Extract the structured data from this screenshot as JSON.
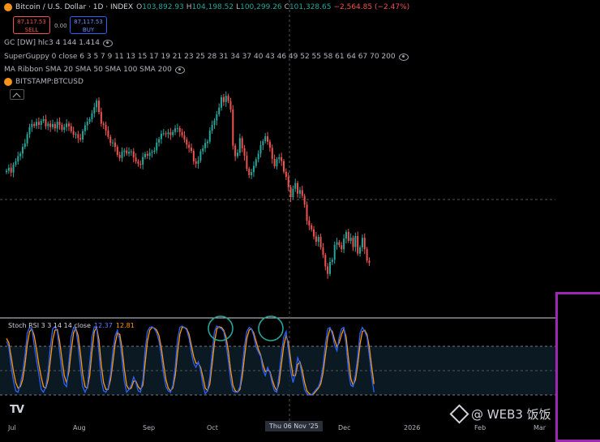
{
  "header": {
    "title": "Bitcoin / U.S. Dollar · 1D · INDEX",
    "ohlc": [
      {
        "label": "O",
        "value": "103,892.93",
        "tone": "up"
      },
      {
        "label": "H",
        "value": "104,198.52",
        "tone": "up"
      },
      {
        "label": "L",
        "value": "100,299.26",
        "tone": "up"
      },
      {
        "label": "C",
        "value": "101,328.65",
        "tone": "up"
      },
      {
        "label": "",
        "value": "−2,564.85 (−2.47%)",
        "tone": "dn"
      }
    ]
  },
  "trade": {
    "sell_price": "87,117.53",
    "sell_label": "SELL",
    "buy_price": "87,117.53",
    "buy_label": "BUY",
    "spread": "0.00"
  },
  "indicators": [
    {
      "label": "GC [DW] hlc3 4 144 1.414"
    },
    {
      "label": "SuperGuppy 0 close 6 3 5 7 9 11 13 15 17 19 21 23 25 28 31 34 37 40 43 46 49 52 55 58 61 64 67 70 200"
    },
    {
      "label": "MA Ribbon SMA 20 SMA 50 SMA 100 SMA 200"
    },
    {
      "label": "BITSTAMP:BTCUSD"
    }
  ],
  "oscillator": {
    "label": "Stoch RSI 3 3 14 14 close",
    "k_value": "12.37",
    "d_value": "12.81",
    "k_color": "#2962ff",
    "d_color": "#ff9800"
  },
  "xaxis": {
    "labels": [
      "Jul",
      "Aug",
      "Sep",
      "Oct",
      "Dec",
      "2026",
      "Feb",
      "Mar"
    ],
    "crosshair_date": "Thu 06 Nov '25"
  },
  "watermark": {
    "text": "@ WEB3 饭饭"
  },
  "logo": {
    "text": "TV"
  },
  "colors": {
    "up": "#26a69a",
    "down": "#ef5350",
    "highlight": "#26a69a",
    "panel": "#9c27b0"
  },
  "chart_data": {
    "type": "candlestick",
    "symbol": "BTCUSD",
    "interval": "1D",
    "x_start": "Jul 2025",
    "ylim": [
      80000,
      126000
    ],
    "close": [
      107500,
      108200,
      107100,
      108900,
      109600,
      110800,
      111400,
      112900,
      113700,
      115800,
      117400,
      118100,
      117700,
      118600,
      117900,
      118800,
      119200,
      117600,
      118200,
      117400,
      118100,
      117100,
      118600,
      117900,
      116800,
      117400,
      118200,
      117600,
      116500,
      115700,
      115800,
      114900,
      114600,
      116500,
      117800,
      118600,
      119200,
      120500,
      121900,
      123400,
      120800,
      118200,
      117900,
      116600,
      115200,
      113800,
      113900,
      112900,
      111100,
      110400,
      111800,
      112100,
      111400,
      111800,
      111900,
      110500,
      109600,
      109100,
      108900,
      110600,
      111300,
      110900,
      111600,
      111800,
      112100,
      113900,
      114700,
      115900,
      116000,
      115800,
      116200,
      115600,
      116300,
      117100,
      117200,
      116300,
      115500,
      114600,
      113400,
      112700,
      112000,
      109600,
      109100,
      109800,
      111900,
      112600,
      113800,
      114100,
      116600,
      117900,
      118900,
      120300,
      121800,
      124200,
      123100,
      124500,
      123300,
      121400,
      113200,
      110800,
      111600,
      114900,
      112600,
      110900,
      107900,
      106500,
      107200,
      108600,
      110100,
      111400,
      113300,
      114200,
      115300,
      114100,
      112700,
      110200,
      108500,
      110100,
      110600,
      109700,
      107300,
      106100,
      103800,
      101500,
      103400,
      104700,
      102300,
      103100,
      101800,
      99800,
      96200,
      95100,
      94200,
      92600,
      91400,
      92500,
      90100,
      88400,
      85800,
      84100,
      86800,
      87300,
      90700,
      91300,
      90600,
      89700,
      92100,
      93600,
      91600,
      92300,
      90200,
      92700,
      88700,
      90100,
      92300,
      89700,
      87100,
      86600
    ]
  },
  "stoch_data": {
    "k": [
      78,
      70,
      42,
      20,
      6,
      4,
      16,
      32,
      58,
      90,
      98,
      96,
      72,
      50,
      30,
      8,
      4,
      12,
      34,
      70,
      96,
      99,
      92,
      62,
      34,
      16,
      12,
      48,
      84,
      98,
      96,
      72,
      40,
      12,
      4,
      12,
      46,
      84,
      99,
      98,
      62,
      22,
      6,
      4,
      10,
      30,
      62,
      86,
      94,
      80,
      52,
      20,
      4,
      8,
      14,
      26,
      18,
      6,
      4,
      22,
      66,
      92,
      98,
      99,
      96,
      90,
      78,
      56,
      30,
      12,
      6,
      4,
      14,
      40,
      80,
      98,
      100,
      98,
      94,
      82,
      62,
      46,
      40,
      48,
      36,
      14,
      2,
      6,
      26,
      60,
      92,
      100,
      98,
      96,
      92,
      74,
      50,
      22,
      6,
      4,
      4,
      12,
      38,
      72,
      92,
      98,
      96,
      86,
      70,
      62,
      56,
      36,
      28,
      40,
      32,
      16,
      6,
      4,
      30,
      62,
      84,
      92,
      66,
      34,
      18,
      32,
      54,
      46,
      26,
      8,
      2,
      0,
      0,
      4,
      8,
      12,
      22,
      42,
      74,
      96,
      98,
      88,
      72,
      64,
      84,
      96,
      98,
      72,
      34,
      14,
      12,
      30,
      56,
      90,
      98,
      92,
      84,
      58,
      28,
      4
    ],
    "d": [
      82,
      76,
      56,
      34,
      18,
      10,
      12,
      22,
      44,
      74,
      92,
      96,
      86,
      66,
      44,
      26,
      12,
      10,
      22,
      50,
      80,
      94,
      95,
      78,
      52,
      28,
      18,
      34,
      64,
      90,
      97,
      86,
      60,
      30,
      12,
      10,
      28,
      64,
      92,
      98,
      80,
      44,
      18,
      8,
      8,
      22,
      46,
      74,
      90,
      88,
      68,
      38,
      14,
      8,
      10,
      20,
      20,
      12,
      8,
      14,
      46,
      78,
      94,
      98,
      97,
      94,
      86,
      68,
      44,
      22,
      10,
      6,
      10,
      28,
      60,
      88,
      98,
      98,
      96,
      88,
      72,
      56,
      46,
      46,
      40,
      26,
      10,
      6,
      16,
      44,
      76,
      96,
      99,
      98,
      94,
      84,
      64,
      36,
      14,
      6,
      4,
      8,
      26,
      56,
      82,
      94,
      96,
      90,
      78,
      66,
      58,
      44,
      34,
      36,
      34,
      22,
      12,
      6,
      18,
      46,
      72,
      86,
      76,
      50,
      28,
      28,
      44,
      48,
      36,
      18,
      6,
      2,
      0,
      2,
      6,
      10,
      16,
      32,
      58,
      84,
      96,
      92,
      80,
      70,
      76,
      88,
      96,
      84,
      52,
      24,
      14,
      22,
      44,
      74,
      92,
      94,
      88,
      70,
      42,
      16
    ]
  }
}
